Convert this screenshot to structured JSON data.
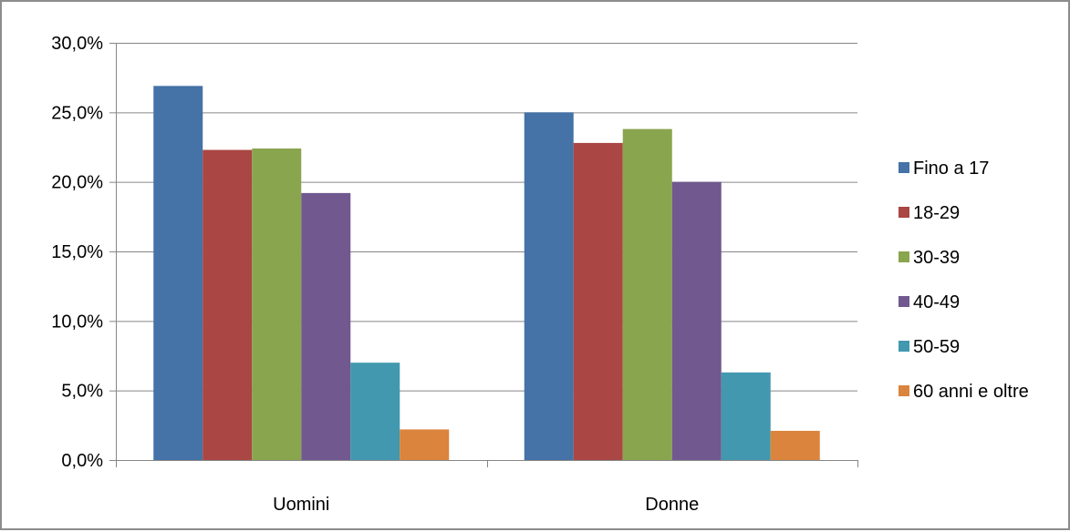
{
  "chart_data": {
    "type": "bar",
    "title": "",
    "xlabel": "",
    "ylabel": "",
    "categories": [
      "Uomini",
      "Donne"
    ],
    "series": [
      {
        "name": "Fino a 17",
        "values": [
          26.9,
          25.0
        ],
        "color": "#4572A7"
      },
      {
        "name": "18-29",
        "values": [
          22.3,
          22.8
        ],
        "color": "#AA4643"
      },
      {
        "name": "30-39",
        "values": [
          22.4,
          23.8
        ],
        "color": "#89A54E"
      },
      {
        "name": "40-49",
        "values": [
          19.2,
          20.0
        ],
        "color": "#71588F"
      },
      {
        "name": "50-59",
        "values": [
          7.0,
          6.3
        ],
        "color": "#4198AF"
      },
      {
        "name": "60 anni e oltre",
        "values": [
          2.2,
          2.1
        ],
        "color": "#DB843D"
      }
    ],
    "ylim": [
      0,
      30
    ],
    "yticks": [
      0,
      5,
      10,
      15,
      20,
      25,
      30
    ],
    "ytick_labels": [
      "0,0%",
      "5,0%",
      "10,0%",
      "15,0%",
      "20,0%",
      "25,0%",
      "30,0%"
    ],
    "grid": true,
    "legend_position": "right"
  }
}
